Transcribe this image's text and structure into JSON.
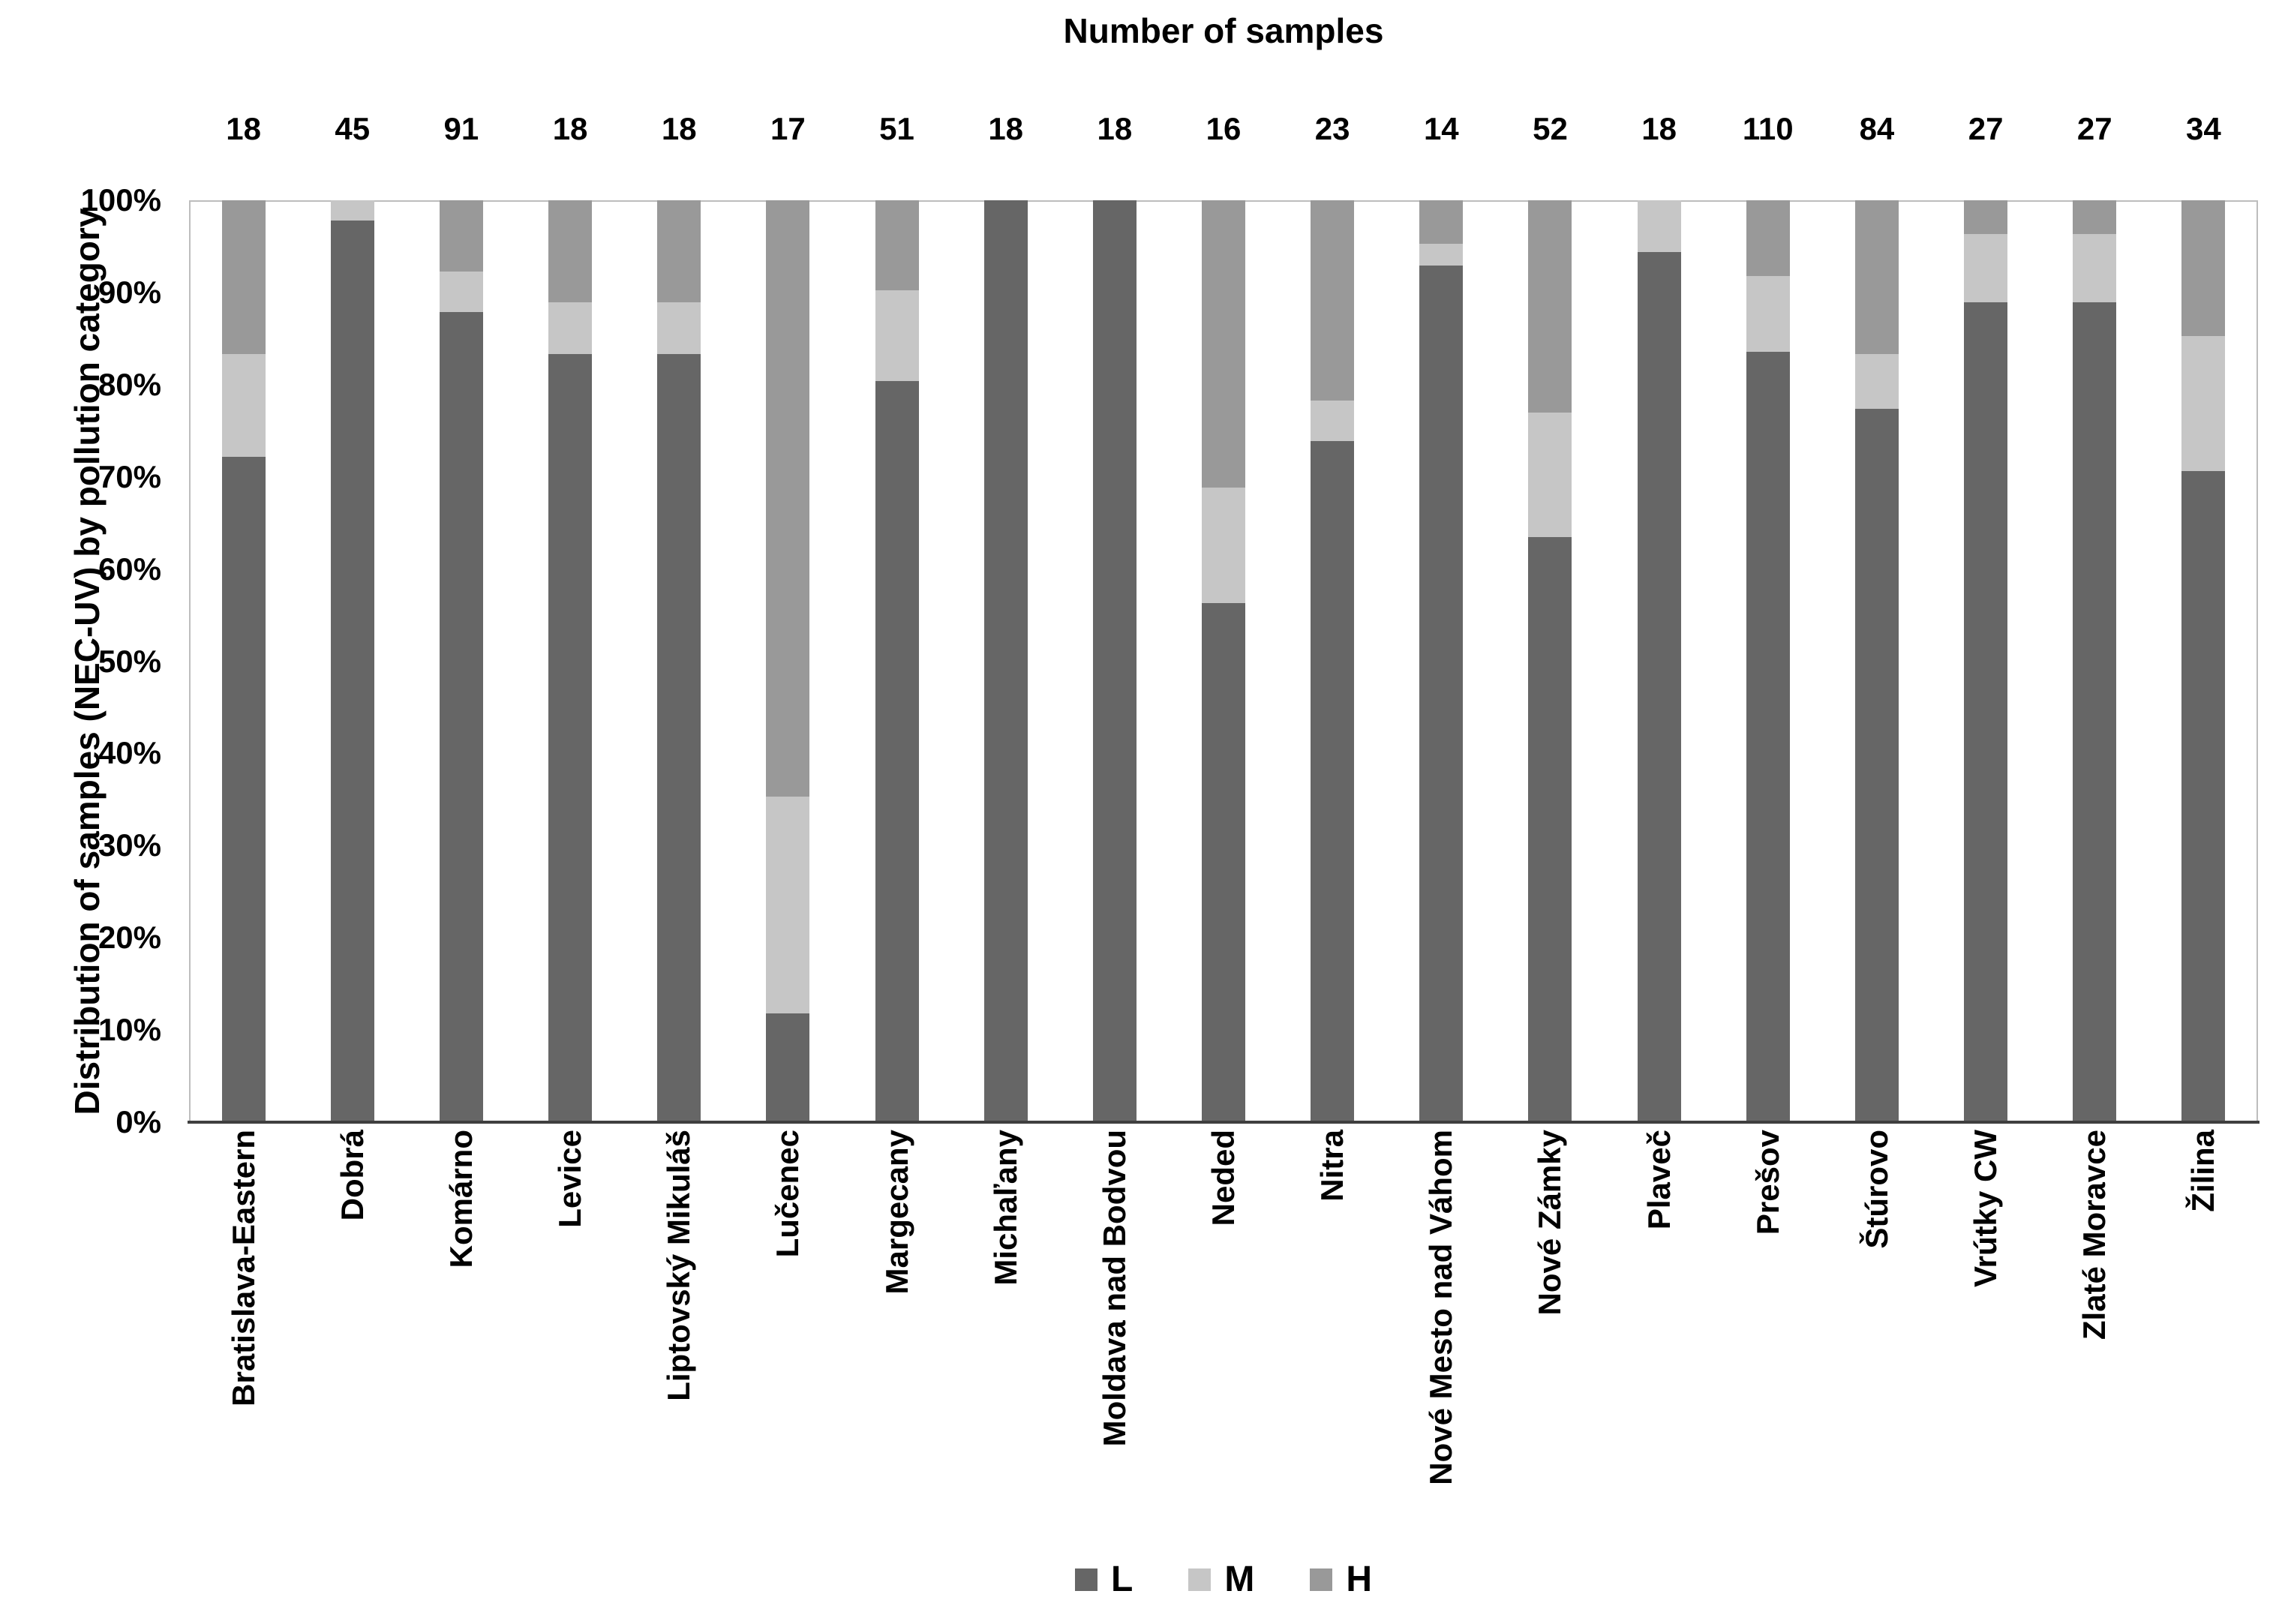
{
  "title": "Number of samples",
  "y_axis_title": "Distribution of samples (NEC-UV)  by pollution category",
  "legend": {
    "items": [
      {
        "label": "L",
        "color": "#666666"
      },
      {
        "label": "M",
        "color": "#c6c6c6"
      },
      {
        "label": "H",
        "color": "#999999"
      }
    ]
  },
  "chart_data": {
    "type": "bar",
    "stacked": true,
    "title": "Number of samples",
    "xlabel": "",
    "ylabel": "Distribution of samples (NEC-UV)  by pollution category",
    "ylim": [
      0,
      100
    ],
    "y_ticks": [
      "0%",
      "10%",
      "20%",
      "30%",
      "40%",
      "50%",
      "60%",
      "70%",
      "80%",
      "90%",
      "100%"
    ],
    "grid": false,
    "legend_position": "bottom",
    "categories": [
      "Bratislava-Eastern",
      "Dobrá",
      "Komárno",
      "Levice",
      "Liptovský Mikuláš",
      "Lučenec",
      "Margecany",
      "Michaľany",
      "Moldava nad Bodvou",
      "Neded",
      "Nitra",
      "Nové Mesto nad Váhom",
      "Nové Zámky",
      "Plaveč",
      "Prešov",
      "Štúrovo",
      "Vrútky CW",
      "Zlaté Moravce",
      "Žilina"
    ],
    "sample_counts": [
      18,
      45,
      91,
      18,
      18,
      17,
      51,
      18,
      18,
      16,
      23,
      14,
      52,
      18,
      110,
      84,
      27,
      27,
      34
    ],
    "series": [
      {
        "name": "L",
        "color": "#666666",
        "values": [
          72.2,
          97.8,
          87.9,
          83.3,
          83.3,
          11.8,
          80.4,
          100,
          100,
          56.3,
          73.9,
          92.9,
          63.5,
          94.4,
          83.6,
          77.4,
          88.9,
          88.9,
          70.6
        ]
      },
      {
        "name": "M",
        "color": "#c6c6c6",
        "values": [
          11.1,
          2.2,
          4.4,
          5.6,
          5.6,
          23.5,
          9.8,
          0,
          0,
          12.5,
          4.4,
          2.4,
          13.5,
          5.6,
          8.2,
          5.9,
          7.4,
          7.4,
          14.7
        ]
      },
      {
        "name": "H",
        "color": "#999999",
        "values": [
          16.7,
          0,
          7.7,
          11.1,
          11.1,
          64.7,
          9.8,
          0,
          0,
          31.2,
          21.7,
          4.7,
          23.0,
          0,
          8.2,
          16.7,
          3.7,
          3.7,
          14.7
        ]
      }
    ]
  }
}
